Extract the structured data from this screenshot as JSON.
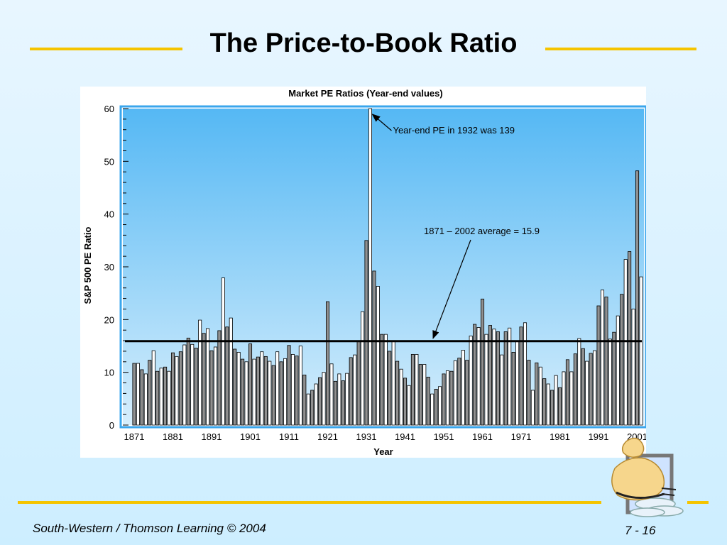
{
  "slide": {
    "title": "The Price-to-Book Ratio",
    "footer_left": "South-Western / Thomson Learning © 2004",
    "footer_right": "7 - 16",
    "accent_color": "#f5c400"
  },
  "chart_data": {
    "type": "bar",
    "title": "Market PE Ratios (Year-end values)",
    "xlabel": "Year",
    "ylabel": "S&P 500 PE Ratio",
    "ylim": [
      0,
      60
    ],
    "yticks": [
      0,
      10,
      20,
      30,
      40,
      50,
      60
    ],
    "xticks": [
      "1871",
      "1881",
      "1891",
      "1901",
      "1911",
      "1921",
      "1931",
      "1941",
      "1951",
      "1961",
      "1971",
      "1981",
      "1991",
      "2001"
    ],
    "x_start": 1871,
    "x_end": 2002,
    "bar_colors": {
      "white": "#ffffff",
      "gray": "#909090"
    },
    "plot_background": [
      "#55b8f4",
      "#d6eefc"
    ],
    "grid": false,
    "values": [
      11.7,
      11.7,
      10.5,
      9.7,
      12.3,
      14.1,
      10.2,
      10.8,
      11.0,
      10.2,
      13.7,
      13.0,
      13.9,
      15.2,
      16.5,
      15.3,
      14.6,
      19.9,
      17.4,
      18.3,
      14.1,
      14.8,
      17.9,
      27.9,
      18.6,
      20.3,
      14.4,
      13.8,
      12.5,
      12.0,
      15.4,
      12.5,
      12.9,
      13.9,
      13.0,
      12.1,
      11.3,
      13.9,
      12.0,
      12.6,
      15.1,
      13.4,
      13.1,
      15.0,
      9.5,
      5.9,
      6.6,
      7.8,
      9.0,
      10.0,
      23.4,
      11.6,
      8.3,
      9.7,
      8.4,
      9.8,
      12.8,
      13.3,
      15.9,
      21.5,
      35.0,
      60.0,
      29.2,
      26.3,
      17.2,
      17.2,
      14.0,
      15.9,
      12.1,
      10.6,
      8.9,
      7.5,
      13.4,
      13.4,
      11.5,
      11.5,
      9.1,
      5.9,
      6.8,
      7.3,
      9.7,
      10.3,
      10.2,
      12.2,
      12.7,
      14.2,
      12.3,
      16.9,
      19.1,
      18.5,
      23.9,
      17.2,
      18.9,
      18.2,
      17.7,
      13.3,
      17.7,
      18.4,
      13.8,
      16.0,
      18.6,
      19.4,
      12.3,
      6.6,
      11.8,
      11.0,
      8.8,
      7.8,
      6.6,
      9.4,
      7.1,
      10.1,
      12.4,
      10.1,
      13.5,
      16.4,
      14.5,
      12.1,
      13.6,
      14.1,
      22.6,
      25.6,
      24.3,
      16.3,
      17.6,
      20.7,
      24.8,
      31.4,
      32.9,
      22.0,
      48.2,
      28.1
    ],
    "annotations": [
      {
        "text": "Year-end PE in 1932 was 139",
        "target_year": 1932,
        "target_value": 60
      },
      {
        "text": "1871 – 2002 average = 15.9",
        "target_year": 1950,
        "target_value": 15.9
      }
    ],
    "average": 15.9
  }
}
